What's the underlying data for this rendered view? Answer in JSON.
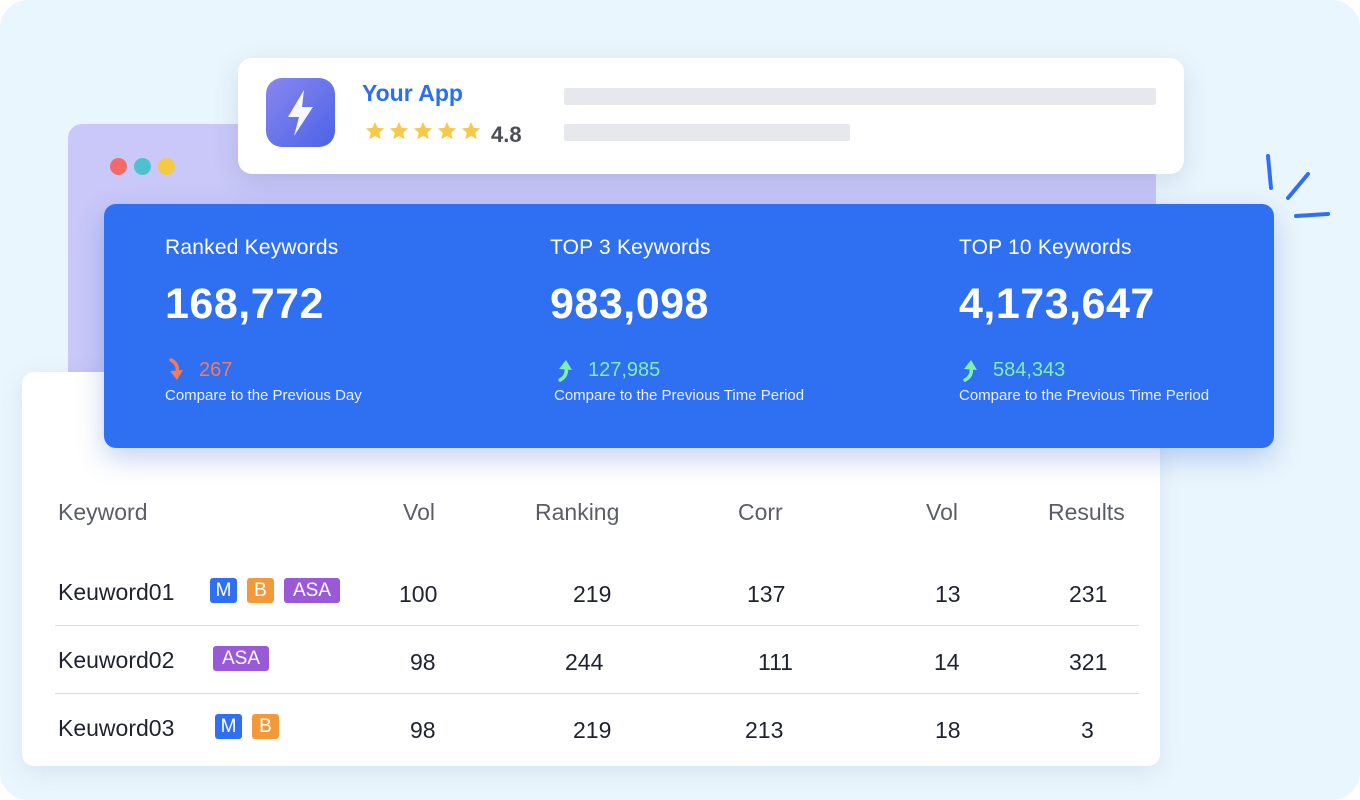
{
  "colors": {
    "background": "#eaf6fd",
    "brand_blue": "#2f6ff2",
    "window_purple": "#c9c8f8",
    "dot_red": "#f26b6b",
    "dot_teal": "#4dc2cf",
    "dot_yellow": "#f5c940",
    "trend_down": "#f27b5b",
    "trend_up": "#7ff0b0",
    "star": "#f7c948",
    "tag_m": "#2f6ff2",
    "tag_b": "#f29a3b",
    "tag_asa": "#9a5ad8"
  },
  "app": {
    "name": "Your App",
    "rating": "4.8",
    "stars": 5,
    "icon": "lightning-icon"
  },
  "stats": [
    {
      "label": "Ranked Keywords",
      "value": "168,772",
      "trend": "down",
      "delta": "267",
      "compare": "Compare to the Previous Day"
    },
    {
      "label": "TOP 3 Keywords",
      "value": "983,098",
      "trend": "up",
      "delta": "127,985",
      "compare": "Compare to the Previous Time Period"
    },
    {
      "label": "TOP 10 Keywords",
      "value": "4,173,647",
      "trend": "up",
      "delta": "584,343",
      "compare": "Compare to the Previous Time Period"
    }
  ],
  "table": {
    "headers": [
      "Keyword",
      "Vol",
      "Ranking",
      "Corr",
      "Vol",
      "Results"
    ],
    "rows": [
      {
        "keyword": "Keuword01",
        "tags": [
          "M",
          "B",
          "ASA"
        ],
        "vol": "100",
        "ranking": "219",
        "corr": "137",
        "vol2": "13",
        "results": "231"
      },
      {
        "keyword": "Keuword02",
        "tags": [
          "ASA"
        ],
        "vol": "98",
        "ranking": "244",
        "corr": "111",
        "vol2": "14",
        "results": "321"
      },
      {
        "keyword": "Keuword03",
        "tags": [
          "M",
          "B"
        ],
        "vol": "98",
        "ranking": "219",
        "corr": "213",
        "vol2": "18",
        "results": "3"
      }
    ]
  }
}
